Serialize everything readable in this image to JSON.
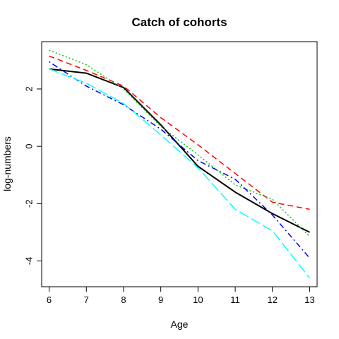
{
  "chart_data": {
    "type": "line",
    "title": "Catch of cohorts",
    "xlabel": "Age",
    "ylabel": "log-numbers",
    "xlim": [
      5.8,
      13.2
    ],
    "ylim": [
      -4.9,
      3.65
    ],
    "x_ticks": [
      "6",
      "7",
      "8",
      "9",
      "10",
      "11",
      "12",
      "13"
    ],
    "y_ticks": [
      "-4",
      "-2",
      "0",
      "2"
    ],
    "grid": false,
    "legend": "none",
    "x": [
      6,
      7,
      8,
      9,
      10,
      11,
      12,
      13
    ],
    "series": [
      {
        "color": "#000000",
        "dash": "solid",
        "width": 2,
        "values": [
          2.7,
          2.55,
          2.05,
          0.75,
          -0.7,
          -1.6,
          -2.35,
          -3.0
        ]
      },
      {
        "color": "#ff0000",
        "dash": "dashed",
        "width": 1.5,
        "values": [
          3.15,
          2.65,
          2.1,
          1.0,
          0.05,
          -0.95,
          -1.95,
          -2.2
        ]
      },
      {
        "color": "#00cd00",
        "dash": "dotted",
        "width": 1.5,
        "values": [
          3.35,
          2.85,
          2.0,
          0.7,
          -0.3,
          -1.35,
          -1.85,
          -3.15
        ]
      },
      {
        "color": "#0000ff",
        "dash": "dotdash",
        "width": 1.5,
        "values": [
          2.95,
          2.1,
          1.45,
          0.6,
          -0.5,
          -1.15,
          -2.4,
          -3.9
        ]
      },
      {
        "color": "#00ffff",
        "dash": "longdash",
        "width": 1.5,
        "values": [
          2.7,
          2.2,
          1.5,
          0.4,
          -0.75,
          -2.2,
          -2.95,
          -4.6
        ]
      }
    ]
  }
}
